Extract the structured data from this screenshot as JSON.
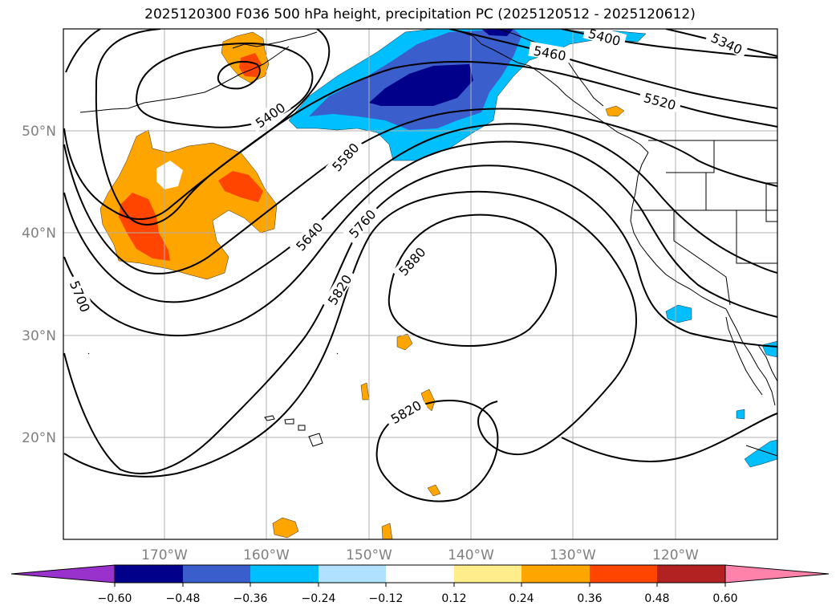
{
  "title": "2025120300 F036 500 hPa height, precipitation PC (2025120512 - 2025120612)",
  "lat_labels": [
    "50°N",
    "40°N",
    "30°N",
    "20°N"
  ],
  "lon_labels": [
    "170°W",
    "160°W",
    "150°W",
    "140°W",
    "130°W",
    "120°W"
  ],
  "contour_labels": [
    "5400",
    "5340",
    "5460",
    "5520",
    "5400",
    "5580",
    "5640",
    "5760",
    "5700",
    "5820",
    "5880",
    "5820"
  ],
  "colorbar": {
    "colors": [
      "#9932cc",
      "#00008b",
      "#3a5fcd",
      "#00bfff",
      "#b0e2ff",
      "#ffffff",
      "#ffec8b",
      "#ffa500",
      "#ff4500",
      "#b22222",
      "#ff82ab"
    ],
    "tick_labels": [
      "−0.60",
      "−0.48",
      "−0.36",
      "−0.24",
      "−0.12",
      "0.12",
      "0.24",
      "0.36",
      "0.48",
      "0.60"
    ]
  },
  "colors": {
    "orange": "#ffa500",
    "red_orange": "#ff4500",
    "dark_blue": "#00008b",
    "mid_blue": "#3a5fcd",
    "light_blue": "#00bfff",
    "grid": "#b0b0b0",
    "label_gray": "#808080"
  }
}
